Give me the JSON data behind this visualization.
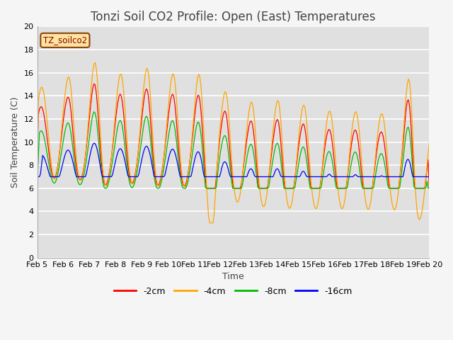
{
  "title": "Tonzi Soil CO2 Profile: Open (East) Temperatures",
  "xlabel": "Time",
  "ylabel": "Soil Temperature (C)",
  "ylim": [
    0,
    20
  ],
  "yticks": [
    0,
    2,
    4,
    6,
    8,
    10,
    12,
    14,
    16,
    18,
    20
  ],
  "xtick_labels": [
    "Feb 5",
    "Feb 6",
    "Feb 7",
    "Feb 8",
    "Feb 9",
    "Feb 10",
    "Feb 11",
    "Feb 12",
    "Feb 13",
    "Feb 14",
    "Feb 15",
    "Feb 16",
    "Feb 17",
    "Feb 18",
    "Feb 19",
    "Feb 20"
  ],
  "legend_label": "TZ_soilco2",
  "series_labels": [
    "-2cm",
    "-4cm",
    "-8cm",
    "-16cm"
  ],
  "series_colors": [
    "#ff0000",
    "#ffa500",
    "#00bb00",
    "#0000ff"
  ],
  "plot_bg_color": "#e0e0e0",
  "fig_bg_color": "#f5f5f5",
  "title_fontsize": 12,
  "axis_fontsize": 9,
  "tick_fontsize": 8
}
